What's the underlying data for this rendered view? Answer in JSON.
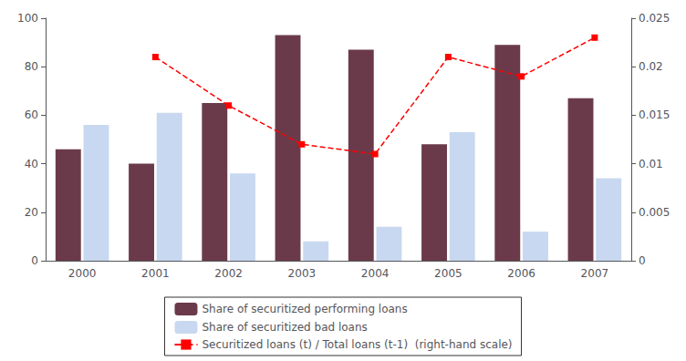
{
  "chart_data": {
    "type": "bar",
    "categories": [
      "2000",
      "2001",
      "2002",
      "2003",
      "2004",
      "2005",
      "2006",
      "2007"
    ],
    "series": [
      {
        "name": "Share of securitized performing loans",
        "type": "bar",
        "color": "#6B3A4A",
        "values": [
          46,
          40,
          65,
          93,
          87,
          48,
          89,
          67
        ]
      },
      {
        "name": "Share of securitized bad loans",
        "type": "bar",
        "color": "#C8D8F0",
        "values": [
          56,
          61,
          36,
          8,
          14,
          53,
          12,
          34
        ]
      },
      {
        "name": "Securitized loans (t) / Total loans (t-1)  (right-hand scale)",
        "type": "line",
        "axis": "y2",
        "color": "#FF0000",
        "marker": "square",
        "line_style": "dashed",
        "values": [
          null,
          0.021,
          0.016,
          0.012,
          0.011,
          0.021,
          0.019,
          0.023
        ]
      }
    ],
    "ylim": [
      0,
      100
    ],
    "yticks": [
      0,
      20,
      40,
      60,
      80,
      100
    ],
    "y2lim": [
      0,
      0.025
    ],
    "y2ticks": [
      0,
      0.005,
      0.01,
      0.015,
      0.02,
      0.025
    ],
    "grid": false,
    "legend": "bottom"
  }
}
